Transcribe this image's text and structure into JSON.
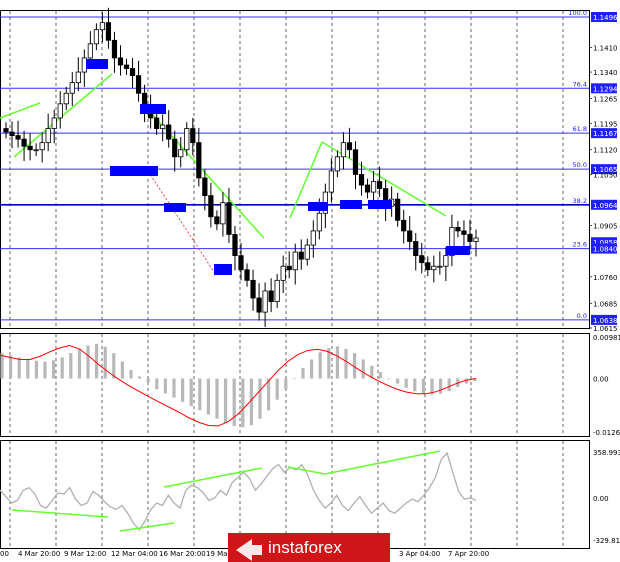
{
  "chart_data": [
    {
      "type": "candlestick",
      "title": "",
      "ylim": [
        1.0615,
        1.1496
      ],
      "y_ticks": [
        "1.1496",
        "1.1410",
        "1.1340",
        "1.1294",
        "1.1265",
        "1.1195",
        "1.1167",
        "1.1120",
        "1.1065",
        "1.1050",
        "1.0964",
        "1.0905",
        "1.0858",
        "1.0840",
        "1.0760",
        "1.0685",
        "1.0638",
        "1.0615"
      ],
      "fib_levels": [
        {
          "label": "100.0",
          "value": "1.1496"
        },
        {
          "label": "76.4",
          "value": "1.1294"
        },
        {
          "label": "61.8",
          "value": "1.1167"
        },
        {
          "label": "50.0",
          "value": "1.1065"
        },
        {
          "label": "38.2",
          "value": "1.0964"
        },
        {
          "label": "23.6",
          "value": "1.0840"
        },
        {
          "label": "0.0",
          "value": "1.0638"
        }
      ],
      "highlighted_prices": [
        "1.1496",
        "1.1294",
        "1.1167",
        "1.1065",
        "1.0964",
        "1.0858",
        "1.0840",
        "1.0638"
      ],
      "x_labels": [
        "4 Mar 20:00",
        "9 Mar 12:00",
        "12 Mar 04:00",
        "16 Mar 20:00",
        "19 Ma",
        "3 Apr 04:00",
        "7 Apr 20:00"
      ],
      "x_label_first": "00",
      "closes": [
        1.117,
        1.116,
        1.115,
        1.113,
        1.112,
        1.112,
        1.114,
        1.118,
        1.121,
        1.125,
        1.128,
        1.131,
        1.134,
        1.138,
        1.142,
        1.146,
        1.148,
        1.143,
        1.138,
        1.136,
        1.135,
        1.133,
        1.128,
        1.124,
        1.121,
        1.118,
        1.119,
        1.115,
        1.11,
        1.112,
        1.118,
        1.114,
        1.104,
        1.099,
        1.093,
        1.091,
        1.097,
        1.088,
        1.082,
        1.078,
        1.075,
        1.07,
        1.066,
        1.072,
        1.069,
        1.075,
        1.079,
        1.078,
        1.083,
        1.081,
        1.085,
        1.089,
        1.094,
        1.1,
        1.106,
        1.11,
        1.114,
        1.112,
        1.105,
        1.102,
        1.1,
        1.103,
        1.101,
        1.096,
        1.098,
        1.092,
        1.089,
        1.086,
        1.082,
        1.08,
        1.078,
        1.079,
        1.079,
        1.082,
        1.09,
        1.089,
        1.088,
        1.086,
        1.087
      ]
    },
    {
      "type": "histogram",
      "name": "MACD",
      "ylim": [
        -0.01263,
        0.00981
      ],
      "y_ticks": [
        "0.00981",
        "0.00",
        "-0.01263"
      ],
      "values": [
        0.006,
        0.0055,
        0.005,
        0.0045,
        0.0042,
        0.004,
        0.0043,
        0.005,
        0.006,
        0.007,
        0.0078,
        0.0082,
        0.0075,
        0.006,
        0.004,
        0.002,
        0.0005,
        -0.001,
        -0.0025,
        -0.0035,
        -0.0045,
        -0.0055,
        -0.0065,
        -0.0075,
        -0.0085,
        -0.0095,
        -0.0105,
        -0.0112,
        -0.0115,
        -0.011,
        -0.0095,
        -0.0075,
        -0.005,
        -0.0025,
        0,
        0.0025,
        0.0045,
        0.0062,
        0.0072,
        0.0076,
        0.007,
        0.006,
        0.0045,
        0.003,
        0.0015,
        0,
        -0.0012,
        -0.0022,
        -0.003,
        -0.0036,
        -0.0038,
        -0.0036,
        -0.003,
        -0.002,
        -0.0012,
        -0.0006
      ],
      "signal": [
        0.0055,
        0.005,
        0.0045,
        0.0045,
        0.0052,
        0.0063,
        0.0072,
        0.0078,
        0.007,
        0.0052,
        0.0032,
        0.0014,
        -0.0002,
        -0.0017,
        -0.003,
        -0.0043,
        -0.0055,
        -0.0067,
        -0.0079,
        -0.0092,
        -0.0103,
        -0.0111,
        -0.0112,
        -0.0102,
        -0.0084,
        -0.006,
        -0.0034,
        -0.0008,
        0.0018,
        0.004,
        0.0056,
        0.0066,
        0.0069,
        0.0064,
        0.0053,
        0.0039,
        0.0024,
        0.0009,
        -0.0004,
        -0.0015,
        -0.0025,
        -0.0032,
        -0.0036,
        -0.0036,
        -0.0031,
        -0.0022,
        -0.0012,
        -0.0004,
        0
      ]
    },
    {
      "type": "line",
      "name": "CCI",
      "ylim": [
        -329.812,
        358.9934
      ],
      "y_ticks": [
        "358.9934",
        "0.00",
        "-329.812"
      ],
      "values": [
        60,
        10,
        -40,
        -20,
        60,
        80,
        30,
        -60,
        -80,
        -20,
        40,
        30,
        80,
        -10,
        -60,
        -40,
        50,
        20,
        -30,
        -70,
        -90,
        -60,
        -120,
        -200,
        -250,
        -180,
        -90,
        -40,
        -60,
        20,
        -40,
        -80,
        60,
        100,
        80,
        40,
        -20,
        0,
        60,
        20,
        120,
        160,
        200,
        150,
        60,
        110,
        170,
        230,
        260,
        200,
        240,
        220,
        260,
        180,
        60,
        -20,
        -80,
        -40,
        20,
        -60,
        -100,
        -40,
        10,
        -60,
        -120,
        -80,
        -40,
        -100,
        -120,
        -80,
        -40,
        -10,
        -30,
        20,
        80,
        160,
        300,
        350,
        200,
        50,
        -10,
        0,
        -20
      ]
    }
  ],
  "watermark": {
    "brand": "instaforex"
  }
}
